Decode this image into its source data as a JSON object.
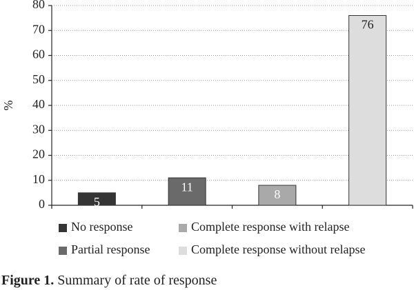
{
  "chart_data": {
    "type": "bar",
    "caption_label": "Figure 1.",
    "title": "Summary of rate of response",
    "ylabel": "%",
    "categories": [
      null,
      null,
      null,
      null
    ],
    "series": [
      {
        "name": "No response",
        "color": "#353535",
        "values": [
          5,
          null,
          null,
          null
        ]
      },
      {
        "name": "Partial response",
        "color": "#6a6a6a",
        "values": [
          null,
          11,
          null,
          null
        ]
      },
      {
        "name": "Complete response with relapse",
        "color": "#a9a9a9",
        "values": [
          null,
          null,
          8,
          null
        ]
      },
      {
        "name": "Complete response without relapse",
        "color": "#dddddd",
        "values": [
          null,
          null,
          null,
          76
        ]
      }
    ],
    "ylim": [
      0,
      80
    ],
    "yticks": [
      0,
      10,
      20,
      30,
      40,
      50,
      60,
      70,
      80
    ],
    "grid": true
  }
}
